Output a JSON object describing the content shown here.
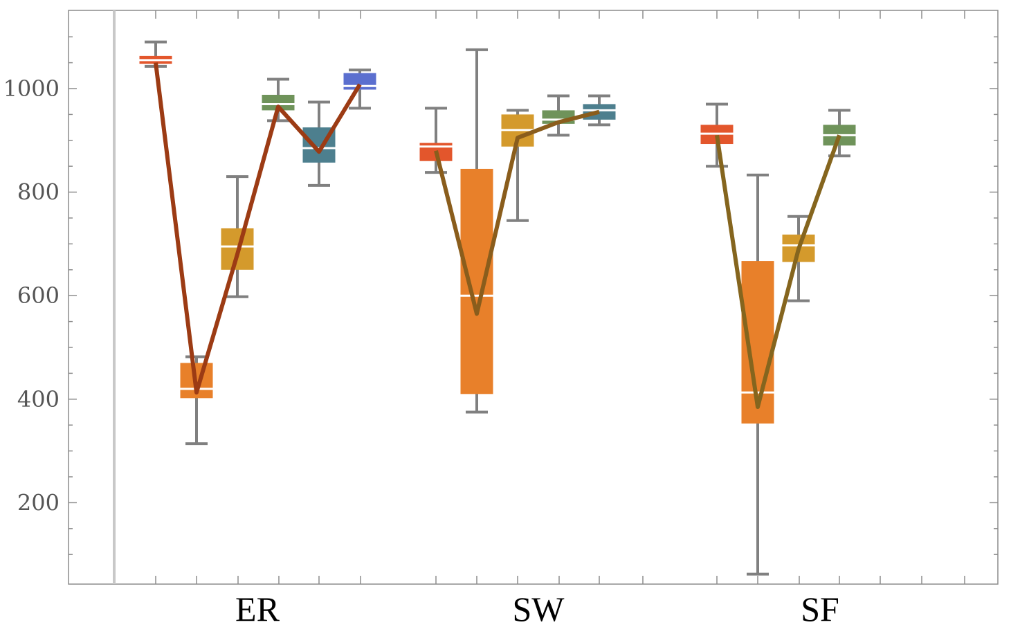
{
  "chart_data": {
    "type": "box",
    "title": "",
    "xlabel": "",
    "ylabel": "",
    "ylim": [
      45,
      1160
    ],
    "yticks": [
      200,
      400,
      600,
      800,
      1000
    ],
    "categories": [
      "ER",
      "SW",
      "SF"
    ],
    "groups": [
      {
        "name": "ER",
        "line_color": "#9c3b14",
        "boxes": [
          {
            "color": "#e3562c",
            "whisker_low": 1043,
            "q1": 1048,
            "median": 1055,
            "q3": 1063,
            "whisker_high": 1090,
            "line_value": 1050
          },
          {
            "color": "#e8802a",
            "whisker_low": 314,
            "q1": 402,
            "median": 420,
            "q3": 470,
            "whisker_high": 482,
            "line_value": 413
          },
          {
            "color": "#d49a2c",
            "whisker_low": 598,
            "q1": 650,
            "median": 695,
            "q3": 730,
            "whisker_high": 830,
            "line_value": 680
          },
          {
            "color": "#6f935a",
            "whisker_low": 938,
            "q1": 958,
            "median": 970,
            "q3": 988,
            "whisker_high": 1018,
            "line_value": 965
          },
          {
            "color": "#4d7f8e",
            "whisker_low": 813,
            "q1": 857,
            "median": 885,
            "q3": 925,
            "whisker_high": 974,
            "line_value": 878
          },
          {
            "color": "#5b6fcf",
            "whisker_low": 962,
            "q1": 998,
            "median": 1005,
            "q3": 1030,
            "whisker_high": 1036,
            "line_value": 1008
          }
        ]
      },
      {
        "name": "SW",
        "line_color": "#8a5d1c",
        "boxes": [
          {
            "color": "#e3562c",
            "whisker_low": 838,
            "q1": 860,
            "median": 888,
            "q3": 895,
            "whisker_high": 962,
            "line_value": 880
          },
          {
            "color": "#e8802a",
            "whisker_low": 375,
            "q1": 410,
            "median": 600,
            "q3": 845,
            "whisker_high": 1075,
            "line_value": 565
          },
          {
            "color": "#d49a2c",
            "whisker_low": 745,
            "q1": 888,
            "median": 920,
            "q3": 950,
            "whisker_high": 958,
            "line_value": 905
          },
          {
            "color": "#6f935a",
            "whisker_low": 910,
            "q1": 932,
            "median": 940,
            "q3": 958,
            "whisker_high": 986,
            "line_value": 935
          },
          {
            "color": "#4d7f8e",
            "whisker_low": 930,
            "q1": 940,
            "median": 958,
            "q3": 970,
            "whisker_high": 986,
            "line_value": 955
          }
        ]
      },
      {
        "name": "SF",
        "line_color": "#85651e",
        "boxes": [
          {
            "color": "#e3562c",
            "whisker_low": 850,
            "q1": 893,
            "median": 913,
            "q3": 930,
            "whisker_high": 970,
            "line_value": 910
          },
          {
            "color": "#e8802a",
            "whisker_low": 62,
            "q1": 353,
            "median": 413,
            "q3": 667,
            "whisker_high": 833,
            "line_value": 385
          },
          {
            "color": "#d49a2c",
            "whisker_low": 590,
            "q1": 665,
            "median": 697,
            "q3": 718,
            "whisker_high": 753,
            "line_value": 690
          },
          {
            "color": "#6f935a",
            "whisker_low": 870,
            "q1": 890,
            "median": 910,
            "q3": 930,
            "whisker_high": 958,
            "line_value": 910
          }
        ]
      }
    ],
    "legend": "none",
    "grid": false
  }
}
